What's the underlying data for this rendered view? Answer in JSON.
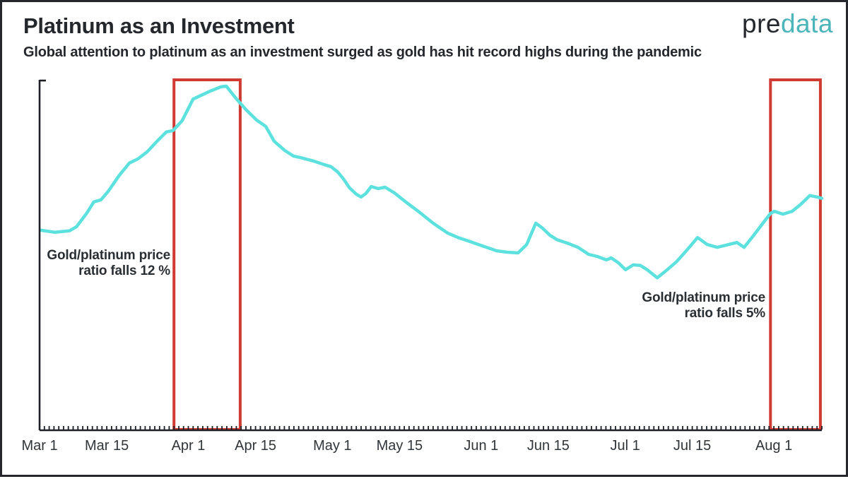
{
  "header": {
    "title": "Platinum as an Investment",
    "subtitle": "Global attention to platinum as an investment surged as gold has hit record highs during the pandemic",
    "logo_pre": "pre",
    "logo_data": "data"
  },
  "colors": {
    "series_line": "#5ce1de",
    "highlight_red": "#cf3a33",
    "axis": "#1d2125",
    "dark_text": "#24282c",
    "logo_teal": "#4bb5b9"
  },
  "annotations": [
    {
      "line1": "Gold/platinum price",
      "line2": "ratio falls 12 %"
    },
    {
      "line1": "Gold/platinum price",
      "line2": "ratio falls 5%"
    }
  ],
  "chart_data": {
    "type": "line",
    "title": "Platinum as an Investment",
    "subtitle": "Global attention to platinum as an investment surged as gold has hit record highs during the pandemic",
    "x_unit": "days since Mar 1, 2020",
    "x_range": [
      0,
      163
    ],
    "y_range": [
      0,
      100
    ],
    "y_meaning": "relative attention index (axis unlabeled, normalized 0-100)",
    "grid": false,
    "legend": "none",
    "minor_tick_every_days": 1,
    "x_ticks": [
      {
        "label": "Mar 1",
        "day": 0
      },
      {
        "label": "Mar 15",
        "day": 14
      },
      {
        "label": "Apr 1",
        "day": 31
      },
      {
        "label": "Apr 15",
        "day": 45
      },
      {
        "label": "May 1",
        "day": 61
      },
      {
        "label": "May 15",
        "day": 75
      },
      {
        "label": "Jun 1",
        "day": 92
      },
      {
        "label": "Jun 15",
        "day": 106
      },
      {
        "label": "Jul 1",
        "day": 122
      },
      {
        "label": "Jul 15",
        "day": 136
      },
      {
        "label": "Aug 1",
        "day": 153
      }
    ],
    "series": [
      {
        "name": "Global attention to platinum as an investment",
        "color": "#5ce1de",
        "points": [
          [
            0.3,
            57.0
          ],
          [
            3.2,
            56.4
          ],
          [
            6.2,
            56.8
          ],
          [
            7.7,
            58.0
          ],
          [
            9.9,
            62.0
          ],
          [
            11.3,
            65.1
          ],
          [
            12.8,
            65.7
          ],
          [
            14.3,
            68.1
          ],
          [
            16.5,
            72.5
          ],
          [
            18.7,
            76.2
          ],
          [
            20.5,
            77.4
          ],
          [
            22.4,
            79.4
          ],
          [
            24.6,
            82.6
          ],
          [
            26.4,
            85.1
          ],
          [
            27.8,
            85.5
          ],
          [
            29.7,
            88.3
          ],
          [
            32.0,
            94.5
          ],
          [
            33.7,
            95.6
          ],
          [
            35.6,
            96.8
          ],
          [
            37.8,
            98.0
          ],
          [
            38.9,
            98.2
          ],
          [
            40.8,
            94.9
          ],
          [
            43.0,
            91.5
          ],
          [
            45.2,
            88.5
          ],
          [
            47.1,
            86.7
          ],
          [
            48.9,
            82.4
          ],
          [
            51.1,
            79.8
          ],
          [
            52.9,
            78.2
          ],
          [
            54.3,
            77.8
          ],
          [
            57.0,
            76.8
          ],
          [
            59.2,
            75.8
          ],
          [
            60.7,
            75.2
          ],
          [
            62.1,
            73.7
          ],
          [
            63.3,
            71.7
          ],
          [
            64.6,
            69.1
          ],
          [
            66.0,
            67.3
          ],
          [
            67.0,
            66.5
          ],
          [
            68.0,
            67.5
          ],
          [
            69.1,
            69.5
          ],
          [
            70.5,
            68.9
          ],
          [
            72.0,
            69.3
          ],
          [
            73.9,
            67.7
          ],
          [
            76.1,
            65.3
          ],
          [
            79.1,
            62.2
          ],
          [
            82.0,
            59.0
          ],
          [
            85.0,
            56.2
          ],
          [
            87.2,
            54.9
          ],
          [
            89.4,
            53.9
          ],
          [
            92.3,
            52.5
          ],
          [
            95.3,
            51.1
          ],
          [
            97.5,
            50.7
          ],
          [
            99.7,
            50.5
          ],
          [
            101.5,
            52.9
          ],
          [
            103.4,
            59.0
          ],
          [
            104.8,
            57.6
          ],
          [
            106.3,
            55.6
          ],
          [
            107.8,
            54.3
          ],
          [
            110.0,
            53.3
          ],
          [
            112.2,
            52.1
          ],
          [
            114.4,
            50.1
          ],
          [
            116.2,
            49.5
          ],
          [
            118.1,
            48.5
          ],
          [
            119.1,
            49.1
          ],
          [
            120.6,
            47.7
          ],
          [
            122.1,
            45.7
          ],
          [
            123.7,
            47.1
          ],
          [
            125.2,
            46.9
          ],
          [
            126.6,
            45.7
          ],
          [
            128.7,
            43.4
          ],
          [
            130.6,
            45.5
          ],
          [
            132.8,
            48.1
          ],
          [
            135.0,
            51.5
          ],
          [
            137.1,
            54.9
          ],
          [
            139.1,
            52.9
          ],
          [
            141.2,
            52.1
          ],
          [
            143.6,
            52.9
          ],
          [
            145.3,
            53.5
          ],
          [
            146.8,
            52.1
          ],
          [
            148.6,
            55.2
          ],
          [
            150.5,
            58.6
          ],
          [
            152.3,
            61.8
          ],
          [
            153.1,
            62.4
          ],
          [
            154.9,
            61.6
          ],
          [
            156.8,
            62.4
          ],
          [
            158.6,
            64.4
          ],
          [
            160.5,
            66.9
          ],
          [
            162.0,
            66.5
          ],
          [
            163.0,
            66.1
          ]
        ]
      }
    ],
    "highlight_regions": [
      {
        "from_day": 28.0,
        "to_day": 41.8,
        "from_date": "Mar 28",
        "to_date": "Apr 11",
        "note": "Gold/platinum price ratio falls 12 %"
      },
      {
        "from_day": 152.3,
        "to_day": 162.7,
        "from_date": "Jul 31",
        "to_date": "Aug 10",
        "note": "Gold/platinum price ratio falls 5%"
      }
    ]
  }
}
